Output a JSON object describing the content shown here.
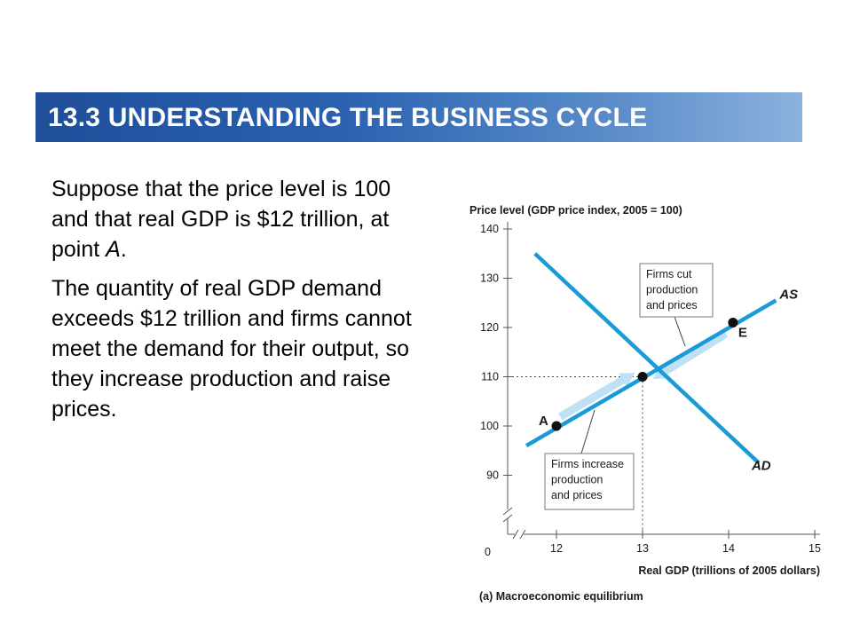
{
  "slide": {
    "title": "13.3  UNDERSTANDING THE BUSINESS CYCLE",
    "paragraph_1": {
      "text_before": "Suppose that the price level is 100 and that real GDP is $12 trillion, at point ",
      "point": "A",
      "text_after": "."
    },
    "paragraph_2": "The quantity of real GDP demand exceeds $12 trillion and firms cannot meet the demand for their output, so they increase production and raise prices."
  },
  "chart_data": {
    "type": "line",
    "ylabel": "Price level (GDP price index, 2005 = 100)",
    "xlabel": "Real GDP (trillions of 2005 dollars)",
    "caption": "(a)  Macroeconomic equilibrium",
    "origin_label": "0",
    "x_ticks": [
      12,
      13,
      14,
      15
    ],
    "y_ticks": [
      90,
      100,
      110,
      120,
      130,
      140
    ],
    "series": [
      {
        "name": "AS",
        "x": [
          11.65,
          14.55
        ],
        "y": [
          96,
          125.5
        ],
        "color": "#1a9bd7"
      },
      {
        "name": "AD",
        "x": [
          11.75,
          14.35
        ],
        "y": [
          135,
          92.5
        ],
        "color": "#1a9bd7"
      }
    ],
    "points": [
      {
        "label": "A",
        "x": 12,
        "y": 100
      },
      {
        "label": "",
        "x": 13,
        "y": 110
      },
      {
        "label": "E",
        "x": 14.05,
        "y": 121
      }
    ],
    "annotations": [
      {
        "lines": [
          "Firms cut",
          "production",
          "and prices"
        ]
      },
      {
        "lines": [
          "Firms increase",
          "production",
          "and prices"
        ]
      }
    ],
    "axis_break": true,
    "grid": false,
    "colors": {
      "curves": "#1a9bd7",
      "arrows": "#bfe1f5",
      "banner": "#2a62b0"
    }
  }
}
